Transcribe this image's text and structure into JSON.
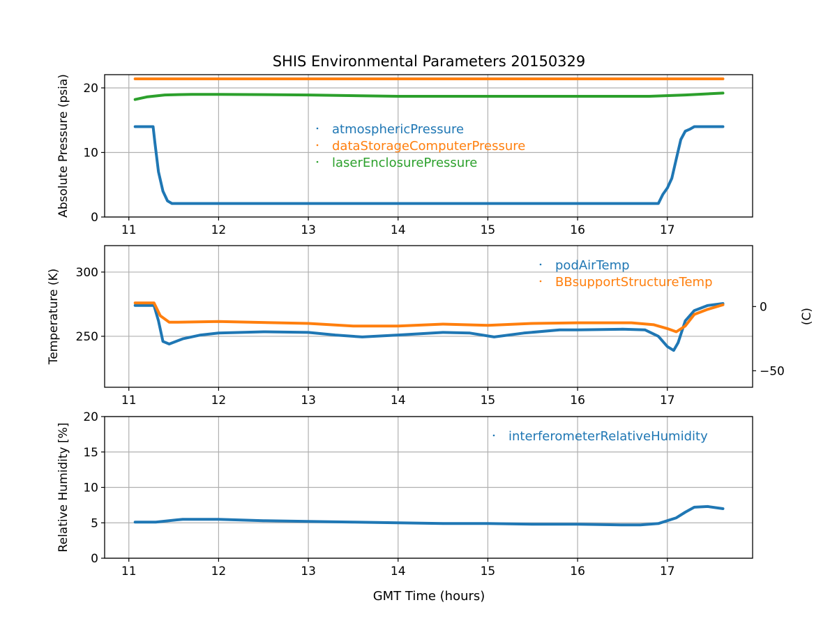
{
  "chart_data": {
    "title": "SHIS Environmental Parameters 20150329",
    "xlabel": "GMT Time (hours)",
    "xlim": [
      10.73,
      17.95
    ],
    "xticks": [
      11,
      12,
      13,
      14,
      15,
      16,
      17
    ],
    "xtick_labels": [
      "11",
      "12",
      "13",
      "14",
      "15",
      "16",
      "17"
    ],
    "grid": true,
    "colors": {
      "blue": "#1f77b4",
      "orange": "#ff7f0e",
      "green": "#2ca02c",
      "grid": "#b0b0b0"
    },
    "panels": [
      {
        "type": "scatter",
        "ylabel": "Absolute Pressure (psia)",
        "ylim": [
          0,
          22.05
        ],
        "yticks": [
          0,
          10,
          20
        ],
        "ytick_labels": [
          "0",
          "10",
          "20"
        ],
        "legend_position": "center",
        "series": [
          {
            "name": "atmosphericPressure",
            "color": "#1f77b4",
            "x": [
              11.07,
              11.27,
              11.29,
              11.33,
              11.38,
              11.43,
              11.48,
              12,
              13,
              14,
              15,
              16,
              16.9,
              16.95,
              17.0,
              17.05,
              17.1,
              17.15,
              17.2,
              17.25,
              17.3,
              17.62
            ],
            "y": [
              14.0,
              14.0,
              11.5,
              7.0,
              4.0,
              2.5,
              2.1,
              2.1,
              2.1,
              2.1,
              2.1,
              2.1,
              2.1,
              3.5,
              4.5,
              6.0,
              9.0,
              12.0,
              13.3,
              13.6,
              14.0,
              14.0
            ]
          },
          {
            "name": "dataStorageComputerPressure",
            "color": "#ff7f0e",
            "x": [
              11.07,
              12,
              13,
              14,
              15,
              16,
              17,
              17.62
            ],
            "y": [
              21.4,
              21.4,
              21.4,
              21.4,
              21.4,
              21.4,
              21.4,
              21.4
            ]
          },
          {
            "name": "laserEnclosurePressure",
            "color": "#2ca02c",
            "x": [
              11.07,
              11.2,
              11.4,
              11.7,
              12,
              13,
              14,
              15,
              16,
              16.8,
              17.2,
              17.62
            ],
            "y": [
              18.2,
              18.6,
              18.9,
              19.0,
              19.0,
              18.9,
              18.7,
              18.7,
              18.7,
              18.7,
              18.9,
              19.2
            ]
          }
        ]
      },
      {
        "type": "scatter",
        "ylabel": "Temperature (K)",
        "ylim": [
          210.3,
          320.6
        ],
        "yticks": [
          250,
          300
        ],
        "ytick_labels": [
          "250",
          "300"
        ],
        "ylabel_right": "(C)",
        "yticks_right_c": [
          -50,
          0
        ],
        "ytick_labels_right": [
          "−50",
          "0"
        ],
        "legend_position": "upper right",
        "series": [
          {
            "name": "podAirTemp",
            "color": "#1f77b4",
            "x": [
              11.07,
              11.28,
              11.33,
              11.38,
              11.45,
              11.6,
              11.8,
              12,
              12.5,
              13,
              13.3,
              13.6,
              14,
              14.5,
              14.8,
              15.07,
              15.4,
              15.8,
              16,
              16.5,
              16.75,
              16.9,
              17.0,
              17.07,
              17.12,
              17.2,
              17.3,
              17.45,
              17.62
            ],
            "y": [
              274,
              274,
              262,
              246,
              244,
              248,
              251,
              252.5,
              253.5,
              253,
              251,
              249.5,
              251,
              253,
              252.5,
              249.5,
              252.5,
              255,
              255,
              255.5,
              255,
              250,
              242,
              239,
              245,
              262,
              270,
              274,
              275.5
            ]
          },
          {
            "name": "BBsupportStructureTemp",
            "color": "#ff7f0e",
            "x": [
              11.07,
              11.28,
              11.35,
              11.45,
              11.55,
              12,
              13,
              13.5,
              14,
              14.5,
              15,
              15.5,
              16,
              16.6,
              16.85,
              17.0,
              17.1,
              17.2,
              17.3,
              17.45,
              17.62
            ],
            "y": [
              276,
              276,
              266,
              261,
              261,
              261.5,
              260,
              258,
              258,
              259.5,
              258.5,
              260,
              260.5,
              260.5,
              259,
              256,
              253.5,
              258,
              267,
              271,
              274.5
            ]
          }
        ]
      },
      {
        "type": "scatter",
        "ylabel": "Relative Humidity [%]",
        "ylim": [
          0,
          20
        ],
        "yticks": [
          0,
          5,
          10,
          15,
          20
        ],
        "ytick_labels": [
          "0",
          "5",
          "10",
          "15",
          "20"
        ],
        "legend_position": "upper right",
        "series": [
          {
            "name": "interferometerRelativeHumidity",
            "color": "#1f77b4",
            "x": [
              11.07,
              11.3,
              11.6,
              12,
              12.5,
              13,
              13.5,
              14,
              14.5,
              15,
              15.5,
              16,
              16.5,
              16.7,
              16.9,
              17.0,
              17.1,
              17.2,
              17.3,
              17.45,
              17.62
            ],
            "y": [
              5.1,
              5.1,
              5.5,
              5.5,
              5.3,
              5.2,
              5.1,
              5.0,
              4.9,
              4.9,
              4.8,
              4.8,
              4.7,
              4.7,
              4.9,
              5.3,
              5.7,
              6.5,
              7.2,
              7.3,
              7.0
            ]
          }
        ]
      }
    ]
  }
}
